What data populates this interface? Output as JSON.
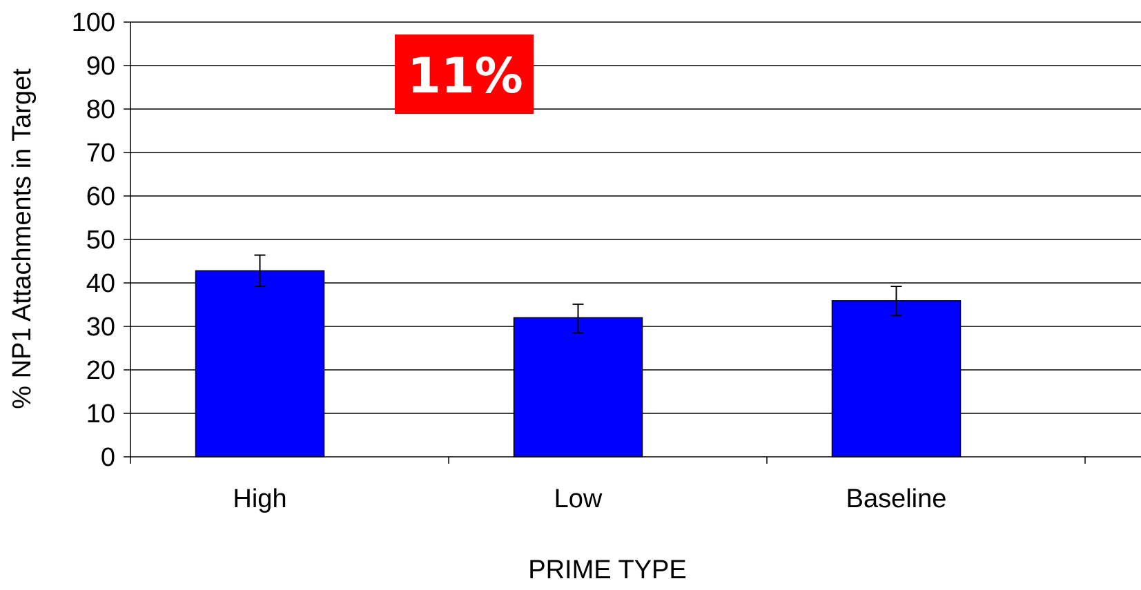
{
  "chart_data": {
    "type": "bar",
    "categories": [
      "High",
      "Low",
      "Baseline"
    ],
    "values": [
      42.8,
      32.0,
      35.9
    ],
    "error_bars": [
      {
        "low": 39.2,
        "high": 46.4
      },
      {
        "low": 28.5,
        "high": 35.1
      },
      {
        "low": 32.5,
        "high": 39.2
      }
    ],
    "xlabel": "PRIME TYPE",
    "ylabel": "% NP1 Attachments in Target",
    "ylim": [
      0,
      100
    ],
    "yticks": [
      0,
      10,
      20,
      30,
      40,
      50,
      60,
      70,
      80,
      90,
      100
    ],
    "grid": true,
    "bar_color": "#0000ff",
    "annotation": {
      "text": "11%",
      "background": "#ff0000",
      "color": "#ffffff"
    }
  }
}
